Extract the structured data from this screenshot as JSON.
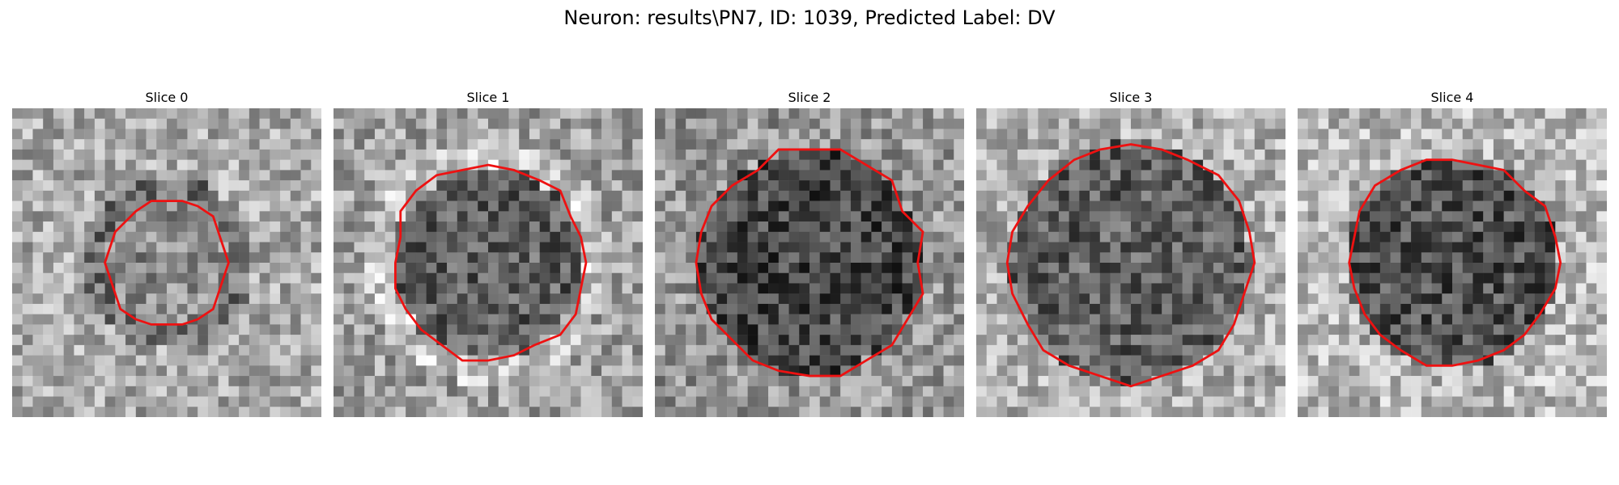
{
  "figure": {
    "title": "Neuron: results\\PN7, ID: 1039, Predicted Label: DV"
  },
  "panels": [
    {
      "title": "Slice 0",
      "center_gray": 140,
      "ring_gray": 110,
      "outer_gray": 170,
      "radius": 0.4,
      "seed": 11
    },
    {
      "title": "Slice 1",
      "center_gray": 95,
      "ring_gray": 200,
      "outer_gray": 160,
      "radius": 0.62,
      "seed": 23
    },
    {
      "title": "Slice 2",
      "center_gray": 70,
      "ring_gray": 150,
      "outer_gray": 150,
      "radius": 0.72,
      "seed": 37
    },
    {
      "title": "Slice 3",
      "center_gray": 95,
      "ring_gray": 175,
      "outer_gray": 175,
      "radius": 0.78,
      "seed": 51
    },
    {
      "title": "Slice 4",
      "center_gray": 80,
      "ring_gray": 180,
      "outer_gray": 185,
      "radius": 0.68,
      "seed": 67
    }
  ],
  "colors": {
    "contour": "#ee1111"
  }
}
